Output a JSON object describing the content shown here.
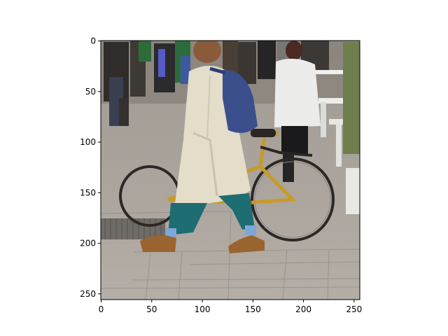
{
  "figure": {
    "x_ticks": [
      "0",
      "50",
      "100",
      "150",
      "200",
      "250"
    ],
    "y_ticks": [
      "0",
      "50",
      "100",
      "150",
      "200",
      "250"
    ],
    "x_tick_values": [
      0,
      50,
      100,
      150,
      200,
      250
    ],
    "y_tick_values": [
      0,
      50,
      100,
      150,
      200,
      250
    ],
    "image_extent": [
      0,
      256,
      256,
      0
    ]
  },
  "photo": {
    "subject": "person in beige coat and blue backpack walking beside a yellow bicycle on a paved plaza",
    "colors": {
      "pavement": "#a9a39c",
      "coat": "#e3ddc9",
      "backpack": "#3b4f8c",
      "trousers": "#1d6d73",
      "bicycle": "#c89a2a",
      "shoes": "#9a6430",
      "crowd": "#3a3633",
      "white_jacket": "#ececea",
      "planter": "#e8e8e4",
      "foliage": "#6e7e4c"
    }
  }
}
